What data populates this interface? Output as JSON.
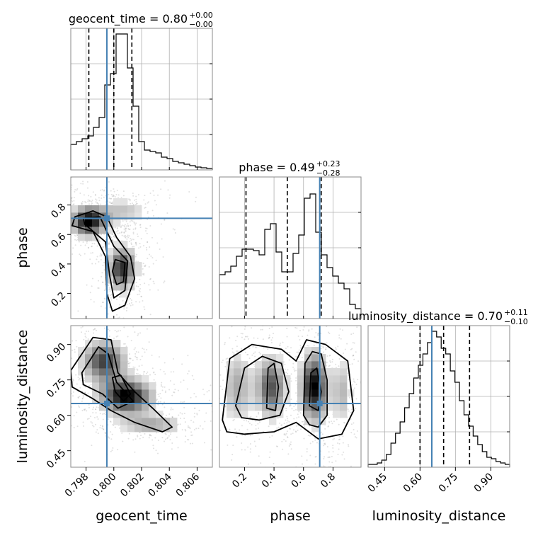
{
  "chart_data": {
    "type": "corner",
    "colors": {
      "truth": "#4682b4",
      "hist": "#000000",
      "scatter": "#888888",
      "density": "#000000"
    },
    "parameters": [
      {
        "key": "geocent_time",
        "label": "geocent_time",
        "truth": 0.7995,
        "range": [
          0.7969,
          0.8071
        ],
        "ticks": [
          0.798,
          0.8,
          0.802,
          0.804,
          0.806
        ],
        "tick_labels": [
          "0.798",
          "0.800",
          "0.802",
          "0.804",
          "0.806"
        ],
        "title": "geocent_time = 0.80",
        "title_plus": "+0.00",
        "title_minus": "−0.00",
        "quantiles": [
          0.7982,
          0.8,
          0.8013
        ]
      },
      {
        "key": "phase",
        "label": "phase",
        "truth": 0.71,
        "range": [
          0.03,
          0.99
        ],
        "ticks": [
          0.2,
          0.4,
          0.6,
          0.8
        ],
        "tick_labels": [
          "0.2",
          "0.4",
          "0.6",
          "0.8"
        ],
        "title": "phase = 0.49",
        "title_plus": "+0.23",
        "title_minus": "−0.28",
        "quantiles": [
          0.21,
          0.49,
          0.72
        ]
      },
      {
        "key": "luminosity_distance",
        "label": "luminosity_distance",
        "truth": 0.65,
        "range": [
          0.38,
          0.98
        ],
        "ticks": [
          0.45,
          0.6,
          0.75,
          0.9
        ],
        "tick_labels": [
          "0.45",
          "0.60",
          "0.75",
          "0.90"
        ],
        "title": "luminosity_distance = 0.70",
        "title_plus": "+0.11",
        "title_minus": "−0.10",
        "quantiles": [
          0.6,
          0.7,
          0.81
        ]
      }
    ],
    "histograms": {
      "geocent_time": [
        0.18,
        0.2,
        0.22,
        0.24,
        0.3,
        0.37,
        0.6,
        0.68,
        0.96,
        0.96,
        0.72,
        0.45,
        0.2,
        0.14,
        0.13,
        0.12,
        0.09,
        0.08,
        0.06,
        0.05,
        0.04,
        0.03,
        0.02,
        0.015,
        0.01
      ],
      "phase": [
        0.31,
        0.33,
        0.37,
        0.44,
        0.49,
        0.49,
        0.48,
        0.45,
        0.63,
        0.67,
        0.47,
        0.33,
        0.33,
        0.46,
        0.59,
        0.85,
        0.88,
        0.61,
        0.45,
        0.36,
        0.3,
        0.25,
        0.21,
        0.1,
        0.07
      ],
      "luminosity_distance": [
        0.02,
        0.02,
        0.03,
        0.05,
        0.09,
        0.17,
        0.24,
        0.32,
        0.42,
        0.52,
        0.63,
        0.72,
        0.8,
        0.88,
        0.96,
        0.92,
        0.84,
        0.8,
        0.68,
        0.6,
        0.47,
        0.37,
        0.29,
        0.22,
        0.16,
        0.11,
        0.07,
        0.06,
        0.04,
        0.03,
        0.02
      ]
    },
    "pairs": [
      {
        "x": "geocent_time",
        "y": "phase",
        "modes": [
          {
            "x": 0.7982,
            "y": 0.69,
            "sx": 0.0009,
            "sy": 0.07,
            "w": 1.0
          },
          {
            "x": 0.8006,
            "y": 0.37,
            "sx": 0.0007,
            "sy": 0.1,
            "w": 0.9
          },
          {
            "x": 0.8007,
            "y": 0.76,
            "sx": 0.0012,
            "sy": 0.06,
            "w": 0.35
          }
        ],
        "contours": [
          [
            [
              0.7972,
              0.72
            ],
            [
              0.7985,
              0.76
            ],
            [
              0.7995,
              0.72
            ],
            [
              0.8002,
              0.58
            ],
            [
              0.8012,
              0.45
            ],
            [
              0.8015,
              0.3
            ],
            [
              0.8008,
              0.12
            ],
            [
              0.7999,
              0.08
            ],
            [
              0.7995,
              0.2
            ],
            [
              0.7994,
              0.45
            ],
            [
              0.7985,
              0.62
            ],
            [
              0.797,
              0.66
            ]
          ],
          [
            [
              0.7978,
              0.71
            ],
            [
              0.799,
              0.72
            ],
            [
              0.8,
              0.52
            ],
            [
              0.801,
              0.42
            ],
            [
              0.8008,
              0.22
            ],
            [
              0.8,
              0.17
            ],
            [
              0.7997,
              0.32
            ],
            [
              0.7994,
              0.55
            ],
            [
              0.7979,
              0.67
            ]
          ],
          [
            [
              0.8001,
              0.43
            ],
            [
              0.8008,
              0.41
            ],
            [
              0.8007,
              0.28
            ],
            [
              0.8002,
              0.26
            ],
            [
              0.7999,
              0.35
            ]
          ]
        ]
      },
      {
        "x": "geocent_time",
        "y": "luminosity_distance",
        "modes": [
          {
            "x": 0.7993,
            "y": 0.83,
            "sx": 0.0011,
            "sy": 0.06,
            "w": 0.8
          },
          {
            "x": 0.8009,
            "y": 0.68,
            "sx": 0.0013,
            "sy": 0.05,
            "w": 1.0
          },
          {
            "x": 0.8028,
            "y": 0.56,
            "sx": 0.0016,
            "sy": 0.03,
            "w": 0.45
          }
        ],
        "contours": [
          [
            [
              0.7969,
              0.79
            ],
            [
              0.7985,
              0.93
            ],
            [
              0.7998,
              0.92
            ],
            [
              0.8003,
              0.78
            ],
            [
              0.8015,
              0.7
            ],
            [
              0.8028,
              0.63
            ],
            [
              0.8042,
              0.55
            ],
            [
              0.8035,
              0.53
            ],
            [
              0.8015,
              0.57
            ],
            [
              0.7998,
              0.62
            ],
            [
              0.7985,
              0.67
            ],
            [
              0.797,
              0.72
            ]
          ],
          [
            [
              0.7977,
              0.78
            ],
            [
              0.7989,
              0.89
            ],
            [
              0.7996,
              0.86
            ],
            [
              0.8002,
              0.74
            ],
            [
              0.8014,
              0.66
            ],
            [
              0.8003,
              0.63
            ],
            [
              0.7992,
              0.69
            ],
            [
              0.7978,
              0.73
            ]
          ],
          [
            [
              0.7999,
              0.76
            ],
            [
              0.8005,
              0.77
            ],
            [
              0.8012,
              0.69
            ],
            [
              0.8007,
              0.66
            ],
            [
              0.8001,
              0.7
            ]
          ]
        ]
      },
      {
        "x": "phase",
        "y": "luminosity_distance",
        "modes": [
          {
            "x": 0.67,
            "y": 0.72,
            "sx": 0.06,
            "sy": 0.1,
            "w": 1.0
          },
          {
            "x": 0.38,
            "y": 0.72,
            "sx": 0.07,
            "sy": 0.09,
            "w": 0.75
          },
          {
            "x": 0.15,
            "y": 0.72,
            "sx": 0.07,
            "sy": 0.11,
            "w": 0.45
          },
          {
            "x": 0.86,
            "y": 0.7,
            "sx": 0.05,
            "sy": 0.1,
            "w": 0.4
          }
        ],
        "contours": [
          [
            [
              0.05,
              0.58
            ],
            [
              0.1,
              0.84
            ],
            [
              0.25,
              0.9
            ],
            [
              0.45,
              0.88
            ],
            [
              0.55,
              0.83
            ],
            [
              0.62,
              0.92
            ],
            [
              0.75,
              0.9
            ],
            [
              0.9,
              0.83
            ],
            [
              0.94,
              0.62
            ],
            [
              0.86,
              0.52
            ],
            [
              0.7,
              0.5
            ],
            [
              0.55,
              0.57
            ],
            [
              0.4,
              0.53
            ],
            [
              0.2,
              0.52
            ],
            [
              0.08,
              0.53
            ]
          ],
          [
            [
              0.14,
              0.64
            ],
            [
              0.2,
              0.8
            ],
            [
              0.32,
              0.85
            ],
            [
              0.45,
              0.82
            ],
            [
              0.5,
              0.7
            ],
            [
              0.44,
              0.6
            ],
            [
              0.3,
              0.58
            ],
            [
              0.18,
              0.59
            ]
          ],
          [
            [
              0.6,
              0.6
            ],
            [
              0.61,
              0.82
            ],
            [
              0.66,
              0.87
            ],
            [
              0.72,
              0.86
            ],
            [
              0.76,
              0.75
            ],
            [
              0.76,
              0.6
            ],
            [
              0.7,
              0.55
            ],
            [
              0.64,
              0.56
            ]
          ],
          [
            [
              0.35,
              0.63
            ],
            [
              0.36,
              0.8
            ],
            [
              0.4,
              0.82
            ],
            [
              0.43,
              0.72
            ],
            [
              0.41,
              0.62
            ]
          ],
          [
            [
              0.64,
              0.64
            ],
            [
              0.65,
              0.78
            ],
            [
              0.69,
              0.8
            ],
            [
              0.72,
              0.7
            ],
            [
              0.7,
              0.62
            ]
          ]
        ]
      }
    ]
  }
}
